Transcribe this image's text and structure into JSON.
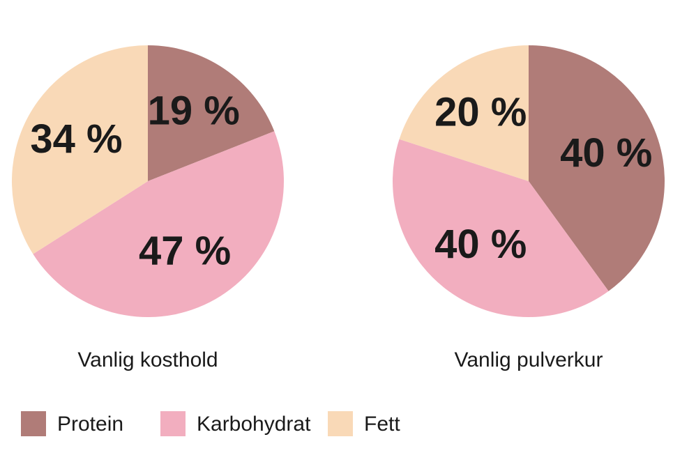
{
  "chart_data": {
    "type": "pie",
    "categories": [
      "Protein",
      "Karbohydrat",
      "Fett"
    ],
    "colors": [
      "#b07c78",
      "#f2aebf",
      "#f9d9b7"
    ],
    "series": [
      {
        "name": "Vanlig kosthold",
        "values": [
          19,
          47,
          34
        ],
        "value_labels": [
          "19 %",
          "47 %",
          "34 %"
        ]
      },
      {
        "name": "Vanlig pulverkur",
        "values": [
          40,
          40,
          20
        ],
        "value_labels": [
          "40 %",
          "40 %",
          "20 %"
        ]
      }
    ]
  }
}
